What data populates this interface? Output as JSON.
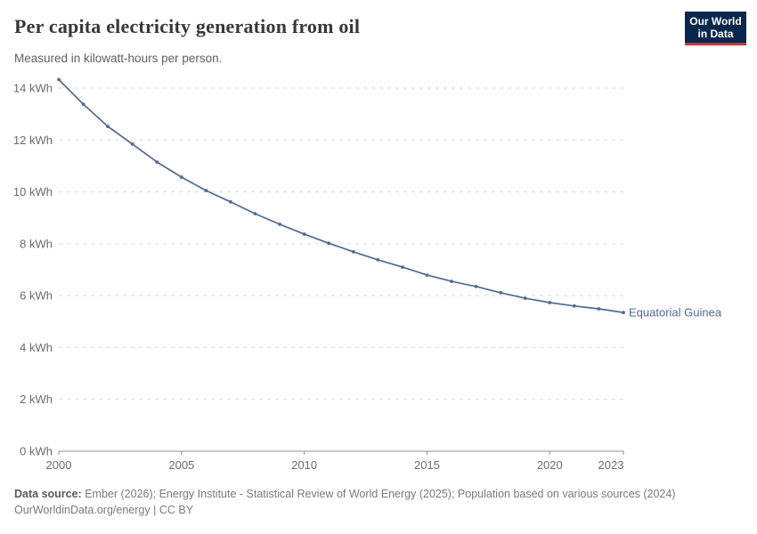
{
  "header": {
    "title": "Per capita electricity generation from oil",
    "subtitle": "Measured in kilowatt-hours per person.",
    "logo": {
      "line1": "Our World",
      "line2": "in Data"
    }
  },
  "chart_data": {
    "type": "line",
    "title": "Per capita electricity generation from oil",
    "ylabel": "",
    "xlabel": "",
    "xlim": [
      2000,
      2023
    ],
    "ylim": [
      0,
      14
    ],
    "grid": "horizontal-dashed",
    "legend_position": "end-of-line-label",
    "x": [
      2000,
      2001,
      2002,
      2003,
      2004,
      2005,
      2006,
      2007,
      2008,
      2009,
      2010,
      2011,
      2012,
      2013,
      2014,
      2015,
      2016,
      2017,
      2018,
      2019,
      2020,
      2021,
      2022,
      2023
    ],
    "series": [
      {
        "name": "Equatorial Guinea",
        "color": "#4c6a9c",
        "values": [
          14.33,
          13.38,
          12.52,
          11.84,
          11.15,
          10.57,
          10.05,
          9.61,
          9.16,
          8.75,
          8.37,
          8.02,
          7.69,
          7.38,
          7.1,
          6.79,
          6.55,
          6.35,
          6.11,
          5.9,
          5.73,
          5.6,
          5.49,
          5.35
        ]
      }
    ],
    "xtick_labels": [
      "2000",
      "2005",
      "2010",
      "2015",
      "2020",
      "2023"
    ],
    "xticks": [
      2000,
      2005,
      2010,
      2015,
      2020,
      2023
    ],
    "ytick_labels": [
      "0 kWh",
      "2 kWh",
      "4 kWh",
      "6 kWh",
      "8 kWh",
      "10 kWh",
      "12 kWh",
      "14 kWh"
    ],
    "yticks": [
      0,
      2,
      4,
      6,
      8,
      10,
      12,
      14
    ],
    "colors": {
      "line": "#4c6a9c",
      "gridline": "#dcdcdc",
      "axis": "#8f8f8f",
      "tick_text": "#6b6b6b"
    }
  },
  "footer": {
    "source_label": "Data source:",
    "source_text": " Ember (2026); Energy Institute - Statistical Review of World Energy (2025); Population based on various sources (2024)",
    "link": "OurWorldinData.org/energy",
    "divider": " | ",
    "license": "CC BY"
  }
}
